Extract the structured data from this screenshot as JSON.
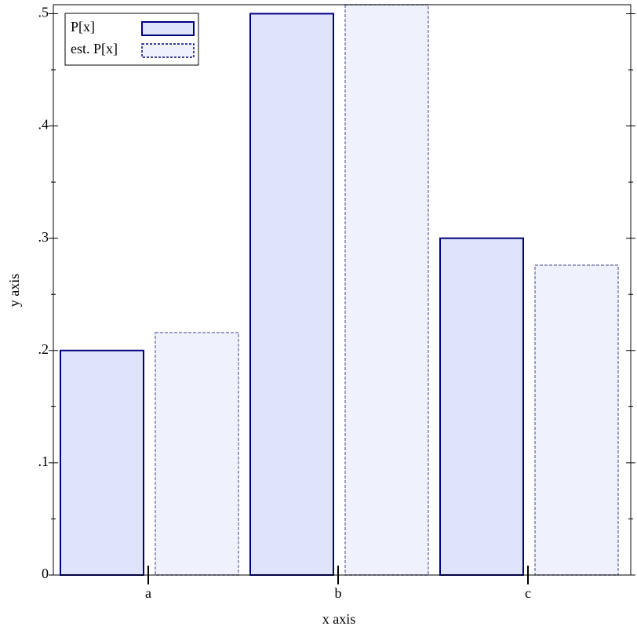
{
  "chart_data": {
    "type": "bar",
    "x_label": "x axis",
    "y_label": "y axis",
    "categories": [
      "a",
      "b",
      "c"
    ],
    "series": [
      {
        "name": "P[x]",
        "color": "#e0e4fa",
        "edge_color": "#00007f",
        "line_style": "solid",
        "values": [
          0.2,
          0.5,
          0.3
        ]
      },
      {
        "name": "est. P[x]",
        "color": "#eff1fc",
        "edge_color": "#7f7fb5",
        "line_style": "dashed",
        "values": [
          0.216,
          0.508,
          0.276
        ]
      }
    ],
    "ylim": [
      0,
      0.508
    ],
    "yticks": [
      0,
      {
        "value": 0.1,
        "label": ".1"
      },
      {
        "value": 0.2,
        "label": ".2"
      },
      {
        "value": 0.3,
        "label": ".3"
      },
      {
        "value": 0.4,
        "label": ".4"
      },
      {
        "value": 0.5,
        "label": ".5"
      }
    ],
    "y_minor_ticks": [
      0.05,
      0.15,
      0.25,
      0.35,
      0.45
    ],
    "legend": "top-left"
  }
}
